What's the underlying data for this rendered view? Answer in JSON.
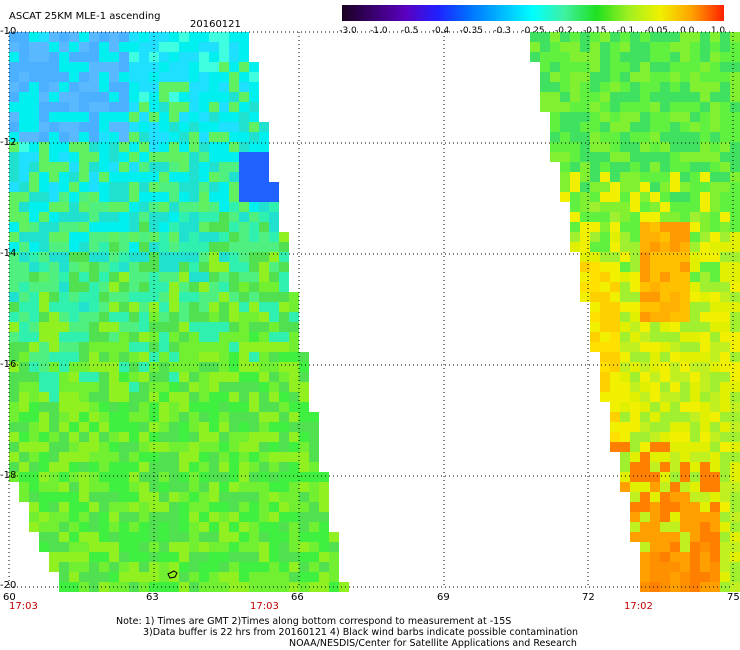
{
  "title": "ASCAT 25KM MLE-1 ascending",
  "date": "20160121",
  "colorbar": {
    "labels": [
      "-3.0",
      "-1.0",
      "-0.5",
      "-0.4",
      "-0.35",
      "-0.3",
      "-0.25",
      "-0.2",
      "-0.15",
      "-0.1",
      "-0.05",
      "0.0",
      "1.0"
    ],
    "colors": [
      "#1a0020",
      "#3a0070",
      "#5a00c0",
      "#2020ff",
      "#0070ff",
      "#00b8ff",
      "#00ffff",
      "#40f0a0",
      "#20e020",
      "#a0f020",
      "#f0f000",
      "#ffa000",
      "#ff2000"
    ]
  },
  "axes": {
    "lon_ticks": [
      "60",
      "63",
      "66",
      "69",
      "72",
      "75"
    ],
    "lat_ticks": [
      "-10",
      "-12",
      "-14",
      "-16",
      "-18",
      "-20"
    ]
  },
  "pass_times": [
    "17:03",
    "17:03",
    "17:02"
  ],
  "notes": [
    "Note: 1) Times are GMT 2)Times along bottom correspond to measurement at -15S",
    "3)Data buffer is 22 hrs from 20160121 4) Black wind barbs indicate possible contamination",
    "NOAA/NESDIS/Center for Satellite Applications and Research"
  ]
}
